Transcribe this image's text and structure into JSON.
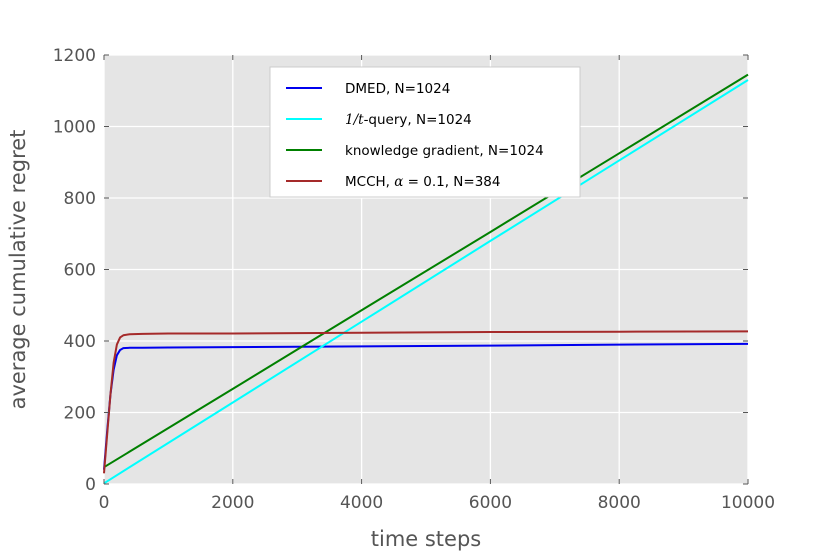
{
  "chart_data": {
    "type": "line",
    "title": "",
    "xlabel": "time steps",
    "ylabel": "average cumulative regret",
    "xlim": [
      0,
      10000
    ],
    "ylim": [
      0,
      1200
    ],
    "xticks": [
      0,
      2000,
      4000,
      6000,
      8000,
      10000
    ],
    "yticks": [
      0,
      200,
      400,
      600,
      800,
      1000,
      1200
    ],
    "xtick_labels": [
      "0",
      "2000",
      "4000",
      "6000",
      "8000",
      "10000"
    ],
    "ytick_labels": [
      "0",
      "200",
      "400",
      "600",
      "800",
      "1000",
      "1200"
    ],
    "grid": true,
    "legend_position": "upper-center",
    "background": "#e5e5e5",
    "series": [
      {
        "name": "DMED, N=1024",
        "legend_prefix": "DMED, N=1024",
        "legend_math": "",
        "legend_suffix": "",
        "color": "#0000ee",
        "x": [
          0,
          50,
          100,
          150,
          200,
          250,
          300,
          400,
          600,
          1000,
          2000,
          4000,
          6000,
          8000,
          10000
        ],
        "y": [
          40,
          150,
          250,
          320,
          360,
          375,
          380,
          381,
          381,
          382,
          383,
          385,
          387,
          390,
          392
        ]
      },
      {
        "name": "1/t-query, N=1024",
        "legend_prefix": "",
        "legend_math": "1/t",
        "legend_suffix": "-query, N=1024",
        "color": "#00ffff",
        "x": [
          0,
          2000,
          4000,
          6000,
          8000,
          10000
        ],
        "y": [
          2,
          228,
          454,
          680,
          905,
          1130
        ]
      },
      {
        "name": "knowledge gradient, N=1024",
        "legend_prefix": "knowledge gradient, N=1024",
        "legend_math": "",
        "legend_suffix": "",
        "color": "#008000",
        "x": [
          0,
          2000,
          4000,
          6000,
          8000,
          10000
        ],
        "y": [
          47,
          266,
          486,
          705,
          925,
          1145
        ]
      },
      {
        "name": "MCCH, α = 0.1, N=384",
        "legend_prefix": "MCCH, ",
        "legend_math": "α",
        "legend_suffix": " = 0.1, N=384",
        "color": "#a52a2a",
        "x": [
          0,
          50,
          100,
          150,
          200,
          250,
          300,
          400,
          600,
          1000,
          2000,
          4000,
          6000,
          8000,
          10000
        ],
        "y": [
          30,
          140,
          250,
          340,
          390,
          410,
          416,
          419,
          420,
          421,
          421,
          423,
          425,
          426,
          427
        ]
      }
    ]
  }
}
